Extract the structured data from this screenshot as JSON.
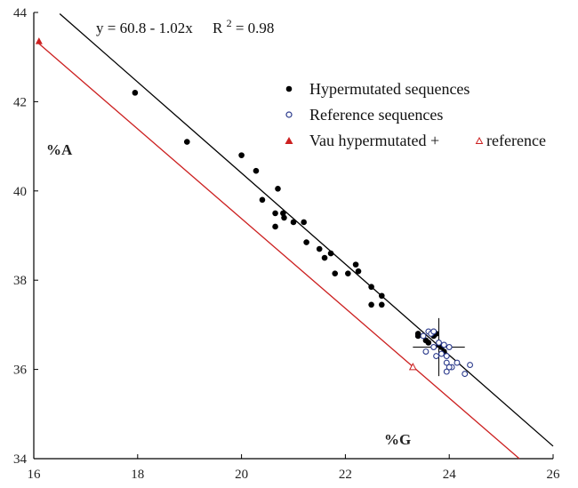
{
  "chart_data": {
    "type": "scatter",
    "xlabel": "%G",
    "ylabel": "%A",
    "xlim": [
      16,
      26
    ],
    "ylim": [
      34,
      44
    ],
    "xticks": [
      16,
      18,
      20,
      22,
      24,
      26
    ],
    "yticks": [
      34,
      36,
      38,
      40,
      42,
      44
    ],
    "grid": false,
    "annotation": {
      "equation": "y = 60.8 - 1.02x",
      "r2_label": "R",
      "r2_sup": "2",
      "r2_value": " = 0.98"
    },
    "legend": {
      "placement": "top-right",
      "entries": [
        {
          "label": "Hypermutated sequences",
          "marker": "filled-circle",
          "color": "#000000"
        },
        {
          "label": "Reference sequences",
          "marker": "open-circle",
          "color": "#2b3a8c"
        },
        {
          "label": "Vau hypermutated +",
          "label2": "reference",
          "marker": "filled-triangle",
          "marker2": "open-triangle",
          "color": "#cc2020"
        }
      ]
    },
    "series": [
      {
        "name": "Hypermutated sequences",
        "marker": "filled-circle",
        "color": "#000000",
        "points": [
          [
            17.95,
            42.2
          ],
          [
            18.95,
            41.1
          ],
          [
            20.0,
            40.8
          ],
          [
            20.28,
            40.45
          ],
          [
            20.4,
            39.8
          ],
          [
            20.65,
            39.5
          ],
          [
            20.7,
            40.05
          ],
          [
            20.65,
            39.2
          ],
          [
            20.8,
            39.5
          ],
          [
            20.82,
            39.4
          ],
          [
            21.0,
            39.3
          ],
          [
            21.2,
            39.3
          ],
          [
            21.25,
            38.85
          ],
          [
            21.5,
            38.7
          ],
          [
            21.6,
            38.5
          ],
          [
            21.72,
            38.6
          ],
          [
            21.8,
            38.15
          ],
          [
            22.05,
            38.15
          ],
          [
            22.2,
            38.35
          ],
          [
            22.25,
            38.2
          ],
          [
            22.5,
            37.85
          ],
          [
            22.5,
            37.45
          ],
          [
            22.7,
            37.65
          ],
          [
            22.7,
            37.45
          ],
          [
            23.4,
            36.8
          ],
          [
            23.4,
            36.75
          ],
          [
            23.55,
            36.65
          ],
          [
            23.6,
            36.6
          ],
          [
            23.7,
            36.85
          ],
          [
            23.7,
            36.75
          ],
          [
            23.75,
            36.8
          ],
          [
            23.8,
            36.55
          ],
          [
            23.85,
            36.5
          ],
          [
            23.9,
            36.4
          ]
        ]
      },
      {
        "name": "Reference sequences",
        "marker": "open-circle",
        "color": "#2b3a8c",
        "points": [
          [
            23.5,
            36.75
          ],
          [
            23.6,
            36.85
          ],
          [
            23.65,
            36.8
          ],
          [
            23.7,
            36.85
          ],
          [
            23.55,
            36.4
          ],
          [
            23.7,
            36.5
          ],
          [
            23.75,
            36.3
          ],
          [
            23.8,
            36.6
          ],
          [
            23.85,
            36.35
          ],
          [
            23.9,
            36.55
          ],
          [
            23.95,
            36.3
          ],
          [
            24.0,
            36.5
          ],
          [
            23.95,
            36.15
          ],
          [
            24.05,
            36.05
          ],
          [
            23.95,
            35.95
          ],
          [
            24.0,
            36.05
          ],
          [
            24.15,
            36.15
          ],
          [
            24.3,
            35.9
          ],
          [
            24.4,
            36.1
          ]
        ]
      },
      {
        "name": "Vau hypermutated",
        "marker": "filled-triangle",
        "color": "#cc2020",
        "points": [
          [
            16.1,
            43.35
          ]
        ]
      },
      {
        "name": "Vau reference",
        "marker": "open-triangle",
        "color": "#cc2020",
        "points": [
          [
            23.3,
            36.05
          ]
        ]
      }
    ],
    "lines": [
      {
        "name": "regression",
        "color": "#000000",
        "intercept": 60.8,
        "slope": -1.02,
        "x_range": [
          16.5,
          26.0
        ]
      },
      {
        "name": "vau-line",
        "color": "#cc2020",
        "from": [
          16.1,
          43.3
        ],
        "to": [
          25.35,
          34.0
        ]
      }
    ],
    "crosshair": {
      "center": [
        23.8,
        36.5
      ],
      "half_width": 0.5,
      "half_height": 0.65
    }
  }
}
